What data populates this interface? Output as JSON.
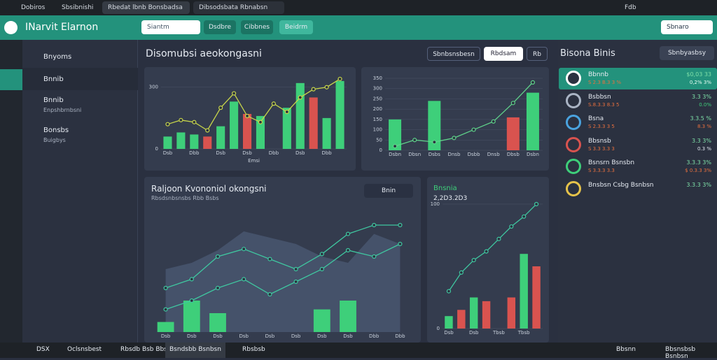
{
  "browser": {
    "tabs": [
      "Dobiros",
      "Sbsibnishi",
      "Rbedat lbnb Bonsbadsa",
      "Dibsodsbata Rbnabsn"
    ],
    "right": "Fdb"
  },
  "header": {
    "title": "INarvit Elarnon",
    "search": "Siantm",
    "buttons": [
      "Dsdbre",
      "Cibbnes",
      "Beidrm"
    ],
    "action": "Sbnaro"
  },
  "sidebar": {
    "items": [
      {
        "label": "Bnyoms"
      },
      {
        "label": "Bnnib"
      },
      {
        "label": "Bnnib",
        "sub": "Enpshbrnbsni"
      },
      {
        "label": "Bonsbs",
        "sub": "Buigbys"
      }
    ]
  },
  "main": {
    "title": "Disomubsi aeokongasni",
    "buttons": [
      "Sbnbsnsbesn",
      "Rbdsam",
      "Rb"
    ]
  },
  "charts": [
    {
      "axis_label": "Emsi",
      "ylim": [
        0,
        350
      ],
      "yticks": [
        0,
        300
      ],
      "categories": [
        "Dsb",
        null,
        "Dbb",
        null,
        "Dsb",
        null,
        "Dsb",
        null,
        "Dbb",
        null,
        "Dsb",
        null,
        "Dbb",
        null
      ],
      "series": [
        {
          "kind": "bar",
          "color": "#3ecf7a",
          "values": [
            60,
            80,
            70,
            null,
            110,
            230,
            null,
            160,
            null,
            200,
            320,
            null,
            150,
            330
          ]
        },
        {
          "kind": "bar",
          "color": "#d9534f",
          "values": [
            null,
            null,
            null,
            60,
            null,
            null,
            170,
            null,
            null,
            null,
            null,
            250,
            null,
            null
          ]
        },
        {
          "kind": "line",
          "color": "#c8d64a",
          "values": [
            120,
            140,
            130,
            90,
            200,
            270,
            160,
            130,
            220,
            180,
            250,
            290,
            300,
            340
          ]
        }
      ]
    },
    {
      "ylim": [
        0,
        350
      ],
      "yticks": [
        0,
        50,
        100,
        150,
        200,
        250,
        300,
        350
      ],
      "categories": [
        "Dsbn",
        "Dbsn",
        "Dsbs",
        "Dnsb",
        "Dsbb",
        "Dnsb",
        "Dbsb",
        "Dsbn"
      ],
      "series": [
        {
          "kind": "bar",
          "color": "#3ecf7a",
          "values": [
            150,
            null,
            240,
            null,
            null,
            null,
            null,
            280
          ]
        },
        {
          "kind": "bar",
          "color": "#d9534f",
          "values": [
            null,
            null,
            null,
            null,
            null,
            null,
            160,
            null
          ]
        },
        {
          "kind": "line",
          "color": "#5fd38a",
          "values": [
            20,
            50,
            40,
            60,
            100,
            140,
            230,
            330
          ]
        }
      ]
    },
    {
      "title": "Raljoon Kvononiol okongsni",
      "subtitle": "Rbsdsnbsnsbs Rbb Bsbs",
      "button": "Bnin",
      "ylim": [
        0,
        100
      ],
      "yticks": [],
      "categories": [
        "Dsb",
        "Dsb",
        "Dsb",
        "Dsb",
        "Dsb",
        "Dsb",
        "Dsb",
        "Dsb",
        "Dbb",
        "Dbb"
      ],
      "series": [
        {
          "kind": "area",
          "color": "#4a5872",
          "values": [
            50,
            55,
            65,
            80,
            75,
            70,
            60,
            55,
            78,
            70
          ]
        },
        {
          "kind": "line",
          "color": "#3fc7a0",
          "values": [
            35,
            42,
            60,
            66,
            58,
            50,
            62,
            78,
            85,
            85
          ]
        },
        {
          "kind": "line",
          "color": "#3fc7a0",
          "values": [
            18,
            25,
            35,
            42,
            30,
            40,
            50,
            65,
            60,
            70
          ]
        },
        {
          "kind": "bar",
          "color": "#3ecf7a",
          "values": [
            8,
            25,
            15,
            null,
            null,
            null,
            18,
            25,
            null,
            null
          ]
        }
      ]
    },
    {
      "title": "Bnsnia",
      "subtitle": "2,2D3.2D3",
      "ylim": [
        0,
        100
      ],
      "yticks": [
        0,
        100
      ],
      "categories": [
        "Dsb",
        null,
        "Dsb",
        null,
        "Tbsb",
        null,
        "Tbsb",
        null
      ],
      "series": [
        {
          "kind": "bar",
          "color": "#3ecf7a",
          "values": [
            10,
            null,
            25,
            null,
            null,
            null,
            60,
            null
          ]
        },
        {
          "kind": "bar",
          "color": "#d9534f",
          "values": [
            null,
            15,
            null,
            22,
            null,
            25,
            null,
            50
          ]
        },
        {
          "kind": "line",
          "color": "#3fc7a0",
          "values": [
            30,
            45,
            55,
            62,
            72,
            82,
            90,
            100
          ]
        }
      ]
    }
  ],
  "panel": {
    "title": "Bisona Binis",
    "button": "Sbnbyasbsy",
    "items": [
      {
        "name": "Bbnnb",
        "sub": "S 2.3 B.3 3 %",
        "value": "$0,03 33",
        "change": "0,2% 3%",
        "ring": "#ffffff",
        "change_color": "#e8fff5"
      },
      {
        "name": "Bsbbsn",
        "sub": "S.8.3.3 8.3 5",
        "value": "3.3 3%",
        "change": "0.0%",
        "ring": "#aab4c4",
        "change_color": "#3ecf7a"
      },
      {
        "name": "Bsna",
        "sub": "S 2.3.3 3 5",
        "value": "3.3.5 %",
        "change": "8.3 %",
        "ring": "#4aa3df",
        "change_color": "#e9703e"
      },
      {
        "name": "Bbsnsb",
        "sub": "S 3.3 3.3 3",
        "value": "3.3 3%",
        "change": "0.3 %",
        "ring": "#d9534f",
        "change_color": "#e0e6ee"
      },
      {
        "name": "Bsnsrn Bsnsbn",
        "sub": "S 3.3.3 3.3",
        "value": "3.3.3 3%",
        "change": "$ 0.3.3 3%",
        "ring": "#3ecf7a",
        "change_color": "#e9703e"
      },
      {
        "name": "Bnsbsn Csbg Bsnbsn",
        "sub": "",
        "value": "3.3.3 3%",
        "change": "",
        "ring": "#e6c34a",
        "change_color": "#e0e6ee"
      }
    ]
  },
  "taskbar": {
    "items": [
      "DSX",
      "Oclsnsbest",
      "Rbsdb Bsb Bbs",
      "Bsndsbb Bsnbsn",
      "Rbsbsb"
    ],
    "right": [
      "Bbsnn",
      "Bbsnsbsb Bsnbsn"
    ]
  }
}
